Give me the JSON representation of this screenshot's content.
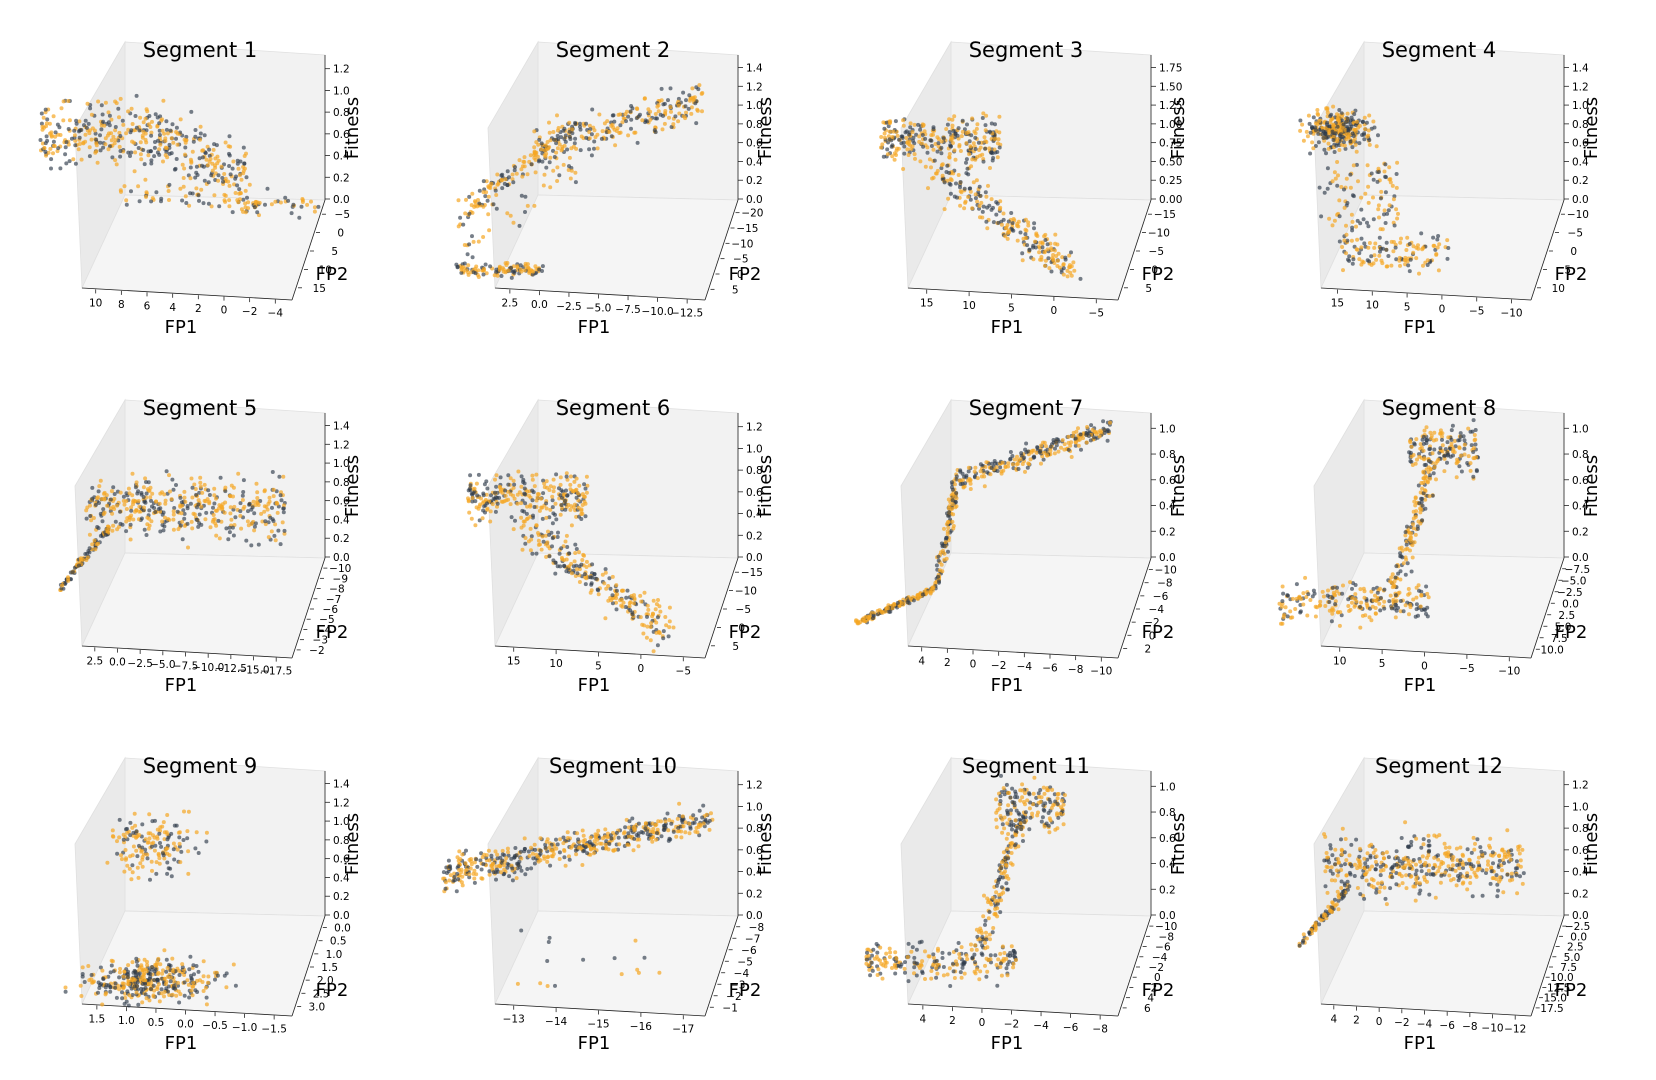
{
  "figure": {
    "axis_labels": {
      "x": "FP1",
      "y": "FP2",
      "z": "Fitness"
    },
    "series_colors": {
      "orange": "#F5A623",
      "dark": "#2E3B4A"
    },
    "pane_color": "#f2f2f2"
  },
  "chart_data": [
    {
      "type": "scatter",
      "title": "Segment 1",
      "xlabel": "FP1",
      "ylabel": "FP2",
      "zlabel": "Fitness",
      "xticks": [
        "10",
        "8",
        "6",
        "4",
        "2",
        "0",
        "−2",
        "−4"
      ],
      "yticks": [
        "−5",
        "0",
        "5",
        "10",
        "15"
      ],
      "zticks": [
        "0.0",
        "0.2",
        "0.4",
        "0.6",
        "0.8",
        "1.0",
        "1.2"
      ],
      "zlim": [
        0,
        1.2
      ],
      "shape": "plateau"
    },
    {
      "type": "scatter",
      "title": "Segment 2",
      "xlabel": "FP1",
      "ylabel": "FP2",
      "zlabel": "Fitness",
      "xticks": [
        "2.5",
        "0.0",
        "−2.5",
        "−5.0",
        "−7.5",
        "−10.0",
        "−12.5"
      ],
      "yticks": [
        "−20",
        "−15",
        "−10",
        "−5",
        "0",
        "5"
      ],
      "zticks": [
        "0.0",
        "0.2",
        "0.4",
        "0.6",
        "0.8",
        "1.0",
        "1.2",
        "1.4"
      ],
      "zlim": [
        0,
        1.4
      ],
      "shape": "rise"
    },
    {
      "type": "scatter",
      "title": "Segment 3",
      "xlabel": "FP1",
      "ylabel": "FP2",
      "zlabel": "Fitness",
      "xticks": [
        "15",
        "10",
        "5",
        "0",
        "−5"
      ],
      "yticks": [
        "−15",
        "−10",
        "−5",
        "0",
        "5"
      ],
      "zticks": [
        "0.00",
        "0.25",
        "0.50",
        "0.75",
        "1.00",
        "1.25",
        "1.50",
        "1.75"
      ],
      "zlim": [
        0,
        1.75
      ],
      "shape": "fall"
    },
    {
      "type": "scatter",
      "title": "Segment 4",
      "xlabel": "FP1",
      "ylabel": "FP2",
      "zlabel": "Fitness",
      "xticks": [
        "15",
        "10",
        "5",
        "0",
        "−5",
        "−10"
      ],
      "yticks": [
        "−10",
        "−5",
        "0",
        "5",
        "10"
      ],
      "zticks": [
        "0.0",
        "0.2",
        "0.4",
        "0.6",
        "0.8",
        "1.0",
        "1.2",
        "1.4"
      ],
      "zlim": [
        0,
        1.4
      ],
      "shape": "cliff"
    },
    {
      "type": "scatter",
      "title": "Segment 5",
      "xlabel": "FP1",
      "ylabel": "FP2",
      "zlabel": "Fitness",
      "xticks": [
        "2.5",
        "0.0",
        "−2.5",
        "−5.0",
        "−7.5",
        "−10.0",
        "−12.5",
        "−15.0",
        "−17.5"
      ],
      "yticks": [
        "−10",
        "−9",
        "−8",
        "−7",
        "−6",
        "−5",
        "−4",
        "−3",
        "−2"
      ],
      "zticks": [
        "0.0",
        "0.2",
        "0.4",
        "0.6",
        "0.8",
        "1.0",
        "1.2",
        "1.4"
      ],
      "zlim": [
        0,
        1.4
      ],
      "shape": "mound"
    },
    {
      "type": "scatter",
      "title": "Segment 6",
      "xlabel": "FP1",
      "ylabel": "FP2",
      "zlabel": "Fitness",
      "xticks": [
        "15",
        "10",
        "5",
        "0",
        "−5"
      ],
      "yticks": [
        "−15",
        "−10",
        "−5",
        "0",
        "5"
      ],
      "zticks": [
        "0.0",
        "0.2",
        "0.4",
        "0.6",
        "0.8",
        "1.0",
        "1.2"
      ],
      "zlim": [
        0,
        1.2
      ],
      "shape": "fall"
    },
    {
      "type": "scatter",
      "title": "Segment 7",
      "xlabel": "FP1",
      "ylabel": "FP2",
      "zlabel": "Fitness",
      "xticks": [
        "4",
        "2",
        "0",
        "−2",
        "−4",
        "−6",
        "−8",
        "−10"
      ],
      "yticks": [
        "−10",
        "−8",
        "−6",
        "−4",
        "−2",
        "0",
        "2"
      ],
      "zticks": [
        "0.0",
        "0.2",
        "0.4",
        "0.6",
        "0.8",
        "1.0"
      ],
      "zlim": [
        0,
        1.0
      ],
      "shape": "sigmoid"
    },
    {
      "type": "scatter",
      "title": "Segment 8",
      "xlabel": "FP1",
      "ylabel": "FP2",
      "zlabel": "Fitness",
      "xticks": [
        "10",
        "5",
        "0",
        "−5",
        "−10"
      ],
      "yticks": [
        "−7.5",
        "−5.0",
        "−2.5",
        "0.0",
        "2.5",
        "5.0",
        "7.5",
        "10.0"
      ],
      "zticks": [
        "0.0",
        "0.2",
        "0.4",
        "0.6",
        "0.8",
        "1.0"
      ],
      "zlim": [
        0,
        1.0
      ],
      "shape": "sigmoid_wide"
    },
    {
      "type": "scatter",
      "title": "Segment 9",
      "xlabel": "FP1",
      "ylabel": "FP2",
      "zlabel": "Fitness",
      "xticks": [
        "1.5",
        "1.0",
        "0.5",
        "0.0",
        "−0.5",
        "−1.0",
        "−1.5"
      ],
      "yticks": [
        "0.0",
        "0.5",
        "1.0",
        "1.5",
        "2.0",
        "2.5",
        "3.0"
      ],
      "zticks": [
        "0.0",
        "0.2",
        "0.4",
        "0.6",
        "0.8",
        "1.0",
        "1.2",
        "1.4"
      ],
      "zlim": [
        0,
        1.4
      ],
      "shape": "split"
    },
    {
      "type": "scatter",
      "title": "Segment 10",
      "xlabel": "FP1",
      "ylabel": "FP2",
      "zlabel": "Fitness",
      "xticks": [
        "−13",
        "−14",
        "−15",
        "−16",
        "−17"
      ],
      "yticks": [
        "−8",
        "−7",
        "−6",
        "−5",
        "−4",
        "−3",
        "−2",
        "−1"
      ],
      "zticks": [
        "0.0",
        "0.2",
        "0.4",
        "0.6",
        "0.8",
        "1.0",
        "1.2"
      ],
      "zlim": [
        0,
        1.2
      ],
      "shape": "band"
    },
    {
      "type": "scatter",
      "title": "Segment 11",
      "xlabel": "FP1",
      "ylabel": "FP2",
      "zlabel": "Fitness",
      "xticks": [
        "4",
        "2",
        "0",
        "−2",
        "−4",
        "−6",
        "−8"
      ],
      "yticks": [
        "−10",
        "−8",
        "−6",
        "−4",
        "−2",
        "0",
        "2",
        "4",
        "6"
      ],
      "zticks": [
        "0.0",
        "0.2",
        "0.4",
        "0.6",
        "0.8",
        "1.0"
      ],
      "zlim": [
        0,
        1.0
      ],
      "shape": "sigmoid_wide"
    },
    {
      "type": "scatter",
      "title": "Segment 12",
      "xlabel": "FP1",
      "ylabel": "FP2",
      "zlabel": "Fitness",
      "xticks": [
        "4",
        "2",
        "0",
        "−2",
        "−4",
        "−6",
        "−8",
        "−10",
        "−12"
      ],
      "yticks": [
        "−2.5",
        "0.0",
        "2.5",
        "5.0",
        "7.5",
        "10.0",
        "12.5",
        "15.0",
        "17.5"
      ],
      "zticks": [
        "0.0",
        "0.2",
        "0.4",
        "0.6",
        "0.8",
        "1.0",
        "1.2"
      ],
      "zlim": [
        0,
        1.2
      ],
      "shape": "mound"
    }
  ]
}
